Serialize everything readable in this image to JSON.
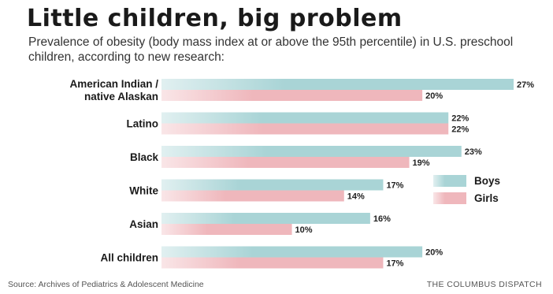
{
  "title": "Little children, big problem",
  "subtitle": "Prevalence of obesity (body mass index at or above the 95th percentile) in U.S. preschool children, according to new research:",
  "source": "Source: Archives of Pediatrics & Adolescent Medicine",
  "credit": "THE COLUMBUS DISPATCH",
  "colors": {
    "boys": "#a9d4d6",
    "girls": "#efb7bc"
  },
  "chart_data": {
    "type": "bar",
    "orientation": "horizontal",
    "categories": [
      [
        "American Indian /",
        "native Alaskan"
      ],
      [
        "Latino"
      ],
      [
        "Black"
      ],
      [
        "White"
      ],
      [
        "Asian"
      ],
      [
        "All children"
      ]
    ],
    "series": [
      {
        "name": "Boys",
        "values": [
          27,
          22,
          23,
          17,
          16,
          20
        ],
        "labels": [
          "27%",
          "22%",
          "23%",
          "17%",
          "16%",
          "20%"
        ]
      },
      {
        "name": "Girls",
        "values": [
          20,
          22,
          19,
          14,
          10,
          17
        ],
        "labels": [
          "20%",
          "22%",
          "19%",
          "14%",
          "10%",
          "17%"
        ]
      }
    ],
    "legend": {
      "position": "right",
      "entries": [
        "Boys",
        "Girls"
      ]
    },
    "grid": false
  }
}
